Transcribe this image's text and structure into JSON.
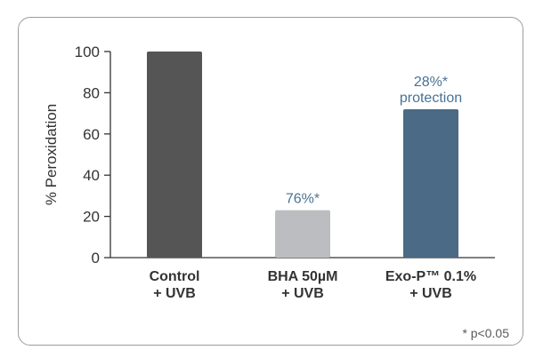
{
  "chart_data": {
    "type": "bar",
    "ylabel": "% Peroxidation",
    "ylim": [
      0,
      100
    ],
    "yticks": [
      0,
      20,
      40,
      60,
      80,
      100
    ],
    "categories": [
      {
        "line1": "Control",
        "line2": "+ UVB"
      },
      {
        "line1": "BHA 50µM",
        "line2": "+ UVB"
      },
      {
        "line1": "Exo-P™ 0.1%",
        "line2": "+ UVB"
      }
    ],
    "values": [
      100,
      23,
      72
    ],
    "bar_colors": [
      "#555555",
      "#bcbdc0",
      "#4a6a86"
    ],
    "annotations": [
      {
        "lines": []
      },
      {
        "lines": [
          "76%*"
        ]
      },
      {
        "lines": [
          "28%*",
          "protection"
        ]
      }
    ],
    "annotation_color": "#4a7194",
    "footnote": "* p<0.05"
  }
}
